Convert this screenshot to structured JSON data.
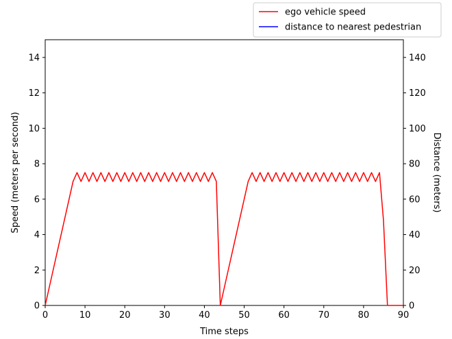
{
  "chart_data": {
    "type": "line",
    "xlabel": "Time steps",
    "ylabel": "Speed (meters per second)",
    "y2label": "Distance (meters)",
    "xlim": [
      0,
      90
    ],
    "ylim": [
      0,
      15
    ],
    "y2lim": [
      0,
      150
    ],
    "xticks": [
      0,
      10,
      20,
      30,
      40,
      50,
      60,
      70,
      80,
      90
    ],
    "yticks": [
      0,
      2,
      4,
      6,
      8,
      10,
      12,
      14
    ],
    "y2ticks": [
      0,
      20,
      40,
      60,
      80,
      100,
      120,
      140
    ],
    "grid": false,
    "legend_position": "top-right, outside plot",
    "series": [
      {
        "name": "ego vehicle speed",
        "color": "#ff0000",
        "axis": "left",
        "x": [
          0,
          1,
          2,
          3,
          4,
          5,
          6,
          7,
          8,
          9,
          10,
          11,
          12,
          13,
          14,
          15,
          16,
          17,
          18,
          19,
          20,
          21,
          22,
          23,
          24,
          25,
          26,
          27,
          28,
          29,
          30,
          31,
          32,
          33,
          34,
          35,
          36,
          37,
          38,
          39,
          40,
          41,
          42,
          43,
          44,
          45,
          46,
          47,
          48,
          49,
          50,
          51,
          52,
          53,
          54,
          55,
          56,
          57,
          58,
          59,
          60,
          61,
          62,
          63,
          64,
          65,
          66,
          67,
          68,
          69,
          70,
          71,
          72,
          73,
          74,
          75,
          76,
          77,
          78,
          79,
          80,
          81,
          82,
          83,
          84,
          85,
          86,
          87,
          88,
          89,
          90
        ],
        "y": [
          0,
          1,
          2,
          3,
          4,
          5,
          6,
          7,
          7.5,
          7,
          7.5,
          7,
          7.5,
          7,
          7.5,
          7,
          7.5,
          7,
          7.5,
          7,
          7.5,
          7,
          7.5,
          7,
          7.5,
          7,
          7.5,
          7,
          7.5,
          7,
          7.5,
          7,
          7.5,
          7,
          7.5,
          7,
          7.5,
          7,
          7.5,
          7,
          7.5,
          7,
          7.5,
          7,
          0,
          1,
          2,
          3,
          4,
          5,
          6,
          7,
          7.5,
          7,
          7.5,
          7,
          7.5,
          7,
          7.5,
          7,
          7.5,
          7,
          7.5,
          7,
          7.5,
          7,
          7.5,
          7,
          7.5,
          7,
          7.5,
          7,
          7.5,
          7,
          7.5,
          7,
          7.5,
          7,
          7.5,
          7,
          7.5,
          7,
          7.5,
          7,
          7.5,
          4.8,
          0,
          0,
          0,
          0,
          0
        ]
      },
      {
        "name": "distance to nearest pedestrian",
        "color": "#0000ff",
        "axis": "right",
        "x": [],
        "y": []
      }
    ]
  }
}
